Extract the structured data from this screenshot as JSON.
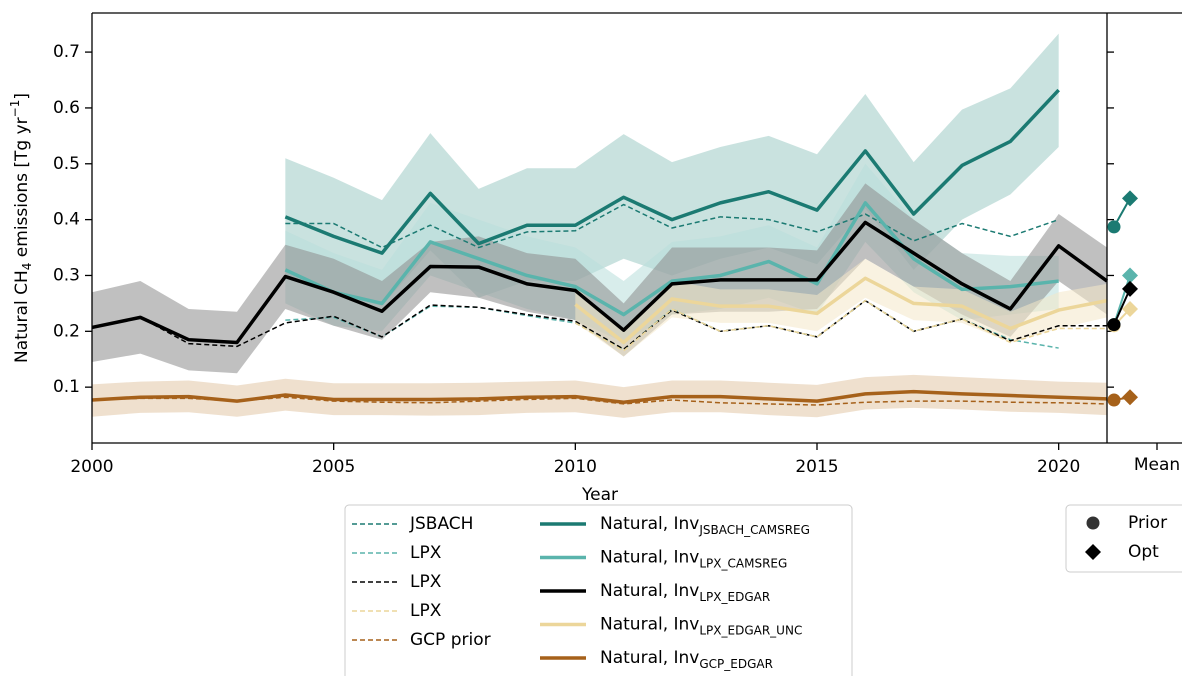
{
  "chart_data": [
    {
      "type": "line",
      "xlabel": "Year",
      "ylabel": [
        "Natural CH",
        "4",
        " emissions [Tg yr",
        "−1",
        "]"
      ],
      "x": [
        2000,
        2001,
        2002,
        2003,
        2004,
        2005,
        2006,
        2007,
        2008,
        2009,
        2010,
        2011,
        2012,
        2013,
        2014,
        2015,
        2016,
        2017,
        2018,
        2019,
        2020,
        2021
      ],
      "xlim": [
        2000,
        2021
      ],
      "xticks": [
        2000,
        2005,
        2010,
        2015,
        2020
      ],
      "ylim": [
        0.0,
        0.77
      ],
      "yticks": [
        0.1,
        0.2,
        0.3,
        0.4,
        0.5,
        0.6,
        0.7
      ],
      "series": [
        {
          "name": "JSBACH",
          "style": "dashed",
          "color": "#1b7a72",
          "values": [
            null,
            null,
            null,
            null,
            0.393,
            0.393,
            0.35,
            0.39,
            0.35,
            0.378,
            0.38,
            0.427,
            0.385,
            0.405,
            0.4,
            0.378,
            0.41,
            0.362,
            0.393,
            0.37,
            0.4,
            null
          ]
        },
        {
          "name": "LPX",
          "style": "dashed",
          "color": "#5ab4ac",
          "values": [
            null,
            null,
            null,
            null,
            0.22,
            0.225,
            0.19,
            0.245,
            0.243,
            0.228,
            0.215,
            0.167,
            0.24,
            0.2,
            0.21,
            0.19,
            0.255,
            0.2,
            0.222,
            0.185,
            0.17,
            null
          ]
        },
        {
          "name": "LPX",
          "style": "dashed",
          "color": "#000000",
          "values": [
            0.207,
            0.225,
            0.178,
            0.173,
            0.215,
            0.227,
            0.19,
            0.247,
            0.243,
            0.23,
            0.218,
            0.168,
            0.238,
            0.2,
            0.21,
            0.19,
            0.255,
            0.2,
            0.222,
            0.183,
            0.21,
            0.21
          ]
        },
        {
          "name": "LPX",
          "style": "dashed",
          "color": "#ecd69a",
          "values": [
            null,
            null,
            null,
            null,
            null,
            null,
            null,
            null,
            null,
            null,
            0.215,
            0.165,
            0.24,
            0.2,
            0.21,
            0.19,
            0.255,
            0.2,
            0.222,
            0.18,
            0.205,
            0.205
          ]
        },
        {
          "name": "GCP prior",
          "style": "dashed",
          "color": "#a6611a",
          "values": [
            0.077,
            0.08,
            0.08,
            0.075,
            0.082,
            0.075,
            0.073,
            0.072,
            0.075,
            0.078,
            0.08,
            0.07,
            0.077,
            0.072,
            0.07,
            0.068,
            0.073,
            0.075,
            0.075,
            0.073,
            0.072,
            0.07
          ]
        },
        {
          "name": "Natural, Inv",
          "name_sub": "JSBACH_CAMSREG",
          "style": "solid",
          "color": "#1b7a72",
          "band_color": "#9ccac5",
          "values": [
            null,
            null,
            null,
            null,
            0.405,
            0.37,
            0.34,
            0.447,
            0.357,
            0.39,
            0.39,
            0.44,
            0.4,
            0.43,
            0.45,
            0.417,
            0.523,
            0.41,
            0.497,
            0.54,
            0.632,
            null
          ],
          "upper": [
            null,
            null,
            null,
            null,
            0.51,
            0.475,
            0.435,
            0.555,
            0.455,
            0.492,
            0.492,
            0.553,
            0.503,
            0.53,
            0.55,
            0.517,
            0.625,
            0.503,
            0.597,
            0.635,
            0.733,
            null
          ],
          "lower": [
            null,
            null,
            null,
            null,
            0.3,
            0.27,
            0.245,
            0.345,
            0.26,
            0.29,
            0.29,
            0.33,
            0.3,
            0.33,
            0.35,
            0.32,
            0.42,
            0.31,
            0.4,
            0.445,
            0.53,
            null
          ]
        },
        {
          "name": "Natural, Inv",
          "name_sub": "LPX_CAMSREG",
          "style": "solid",
          "color": "#5ab4ac",
          "band_color": "#b8dfdb",
          "values": [
            null,
            null,
            null,
            null,
            0.31,
            0.27,
            0.25,
            0.36,
            0.33,
            0.3,
            0.28,
            0.23,
            0.29,
            0.3,
            0.325,
            0.285,
            0.43,
            0.33,
            0.275,
            0.28,
            0.29,
            null
          ],
          "upper": [
            null,
            null,
            null,
            null,
            0.38,
            0.34,
            0.31,
            0.43,
            0.4,
            0.37,
            0.35,
            0.29,
            0.36,
            0.37,
            0.39,
            0.35,
            0.5,
            0.4,
            0.34,
            0.335,
            0.335,
            null
          ],
          "lower": [
            null,
            null,
            null,
            null,
            0.25,
            0.21,
            0.2,
            0.3,
            0.27,
            0.24,
            0.22,
            0.18,
            0.23,
            0.24,
            0.26,
            0.23,
            0.36,
            0.27,
            0.22,
            0.23,
            0.24,
            null
          ]
        },
        {
          "name": "Natural, Inv",
          "name_sub": "LPX_EDGAR",
          "style": "solid",
          "color": "#000000",
          "band_color": "#8c8c8c",
          "values": [
            0.207,
            0.225,
            0.185,
            0.18,
            0.298,
            0.27,
            0.236,
            0.316,
            0.315,
            0.285,
            0.273,
            0.202,
            0.285,
            0.292,
            0.292,
            0.292,
            0.395,
            0.34,
            0.285,
            0.24,
            0.353,
            0.29
          ],
          "upper": [
            0.27,
            0.29,
            0.24,
            0.235,
            0.355,
            0.33,
            0.29,
            0.36,
            0.37,
            0.34,
            0.33,
            0.25,
            0.35,
            0.35,
            0.35,
            0.345,
            0.465,
            0.4,
            0.34,
            0.29,
            0.41,
            0.35
          ],
          "lower": [
            0.145,
            0.16,
            0.13,
            0.125,
            0.24,
            0.21,
            0.185,
            0.27,
            0.26,
            0.235,
            0.22,
            0.155,
            0.23,
            0.235,
            0.235,
            0.24,
            0.33,
            0.28,
            0.23,
            0.19,
            0.29,
            0.23
          ]
        },
        {
          "name": "Natural, Inv",
          "name_sub": "LPX_EDGAR_UNC",
          "style": "solid",
          "color": "#ecd69a",
          "band_color": "#f4e8c8",
          "values": [
            null,
            null,
            null,
            null,
            null,
            null,
            null,
            null,
            null,
            null,
            0.248,
            0.18,
            0.258,
            0.245,
            0.245,
            0.232,
            0.295,
            0.25,
            0.245,
            0.205,
            0.238,
            0.255
          ],
          "upper": [
            null,
            null,
            null,
            null,
            null,
            null,
            null,
            null,
            null,
            null,
            0.28,
            0.2,
            0.29,
            0.275,
            0.275,
            0.265,
            0.33,
            0.28,
            0.275,
            0.235,
            0.27,
            0.285
          ],
          "lower": [
            null,
            null,
            null,
            null,
            null,
            null,
            null,
            null,
            null,
            null,
            0.215,
            0.155,
            0.225,
            0.215,
            0.215,
            0.2,
            0.26,
            0.22,
            0.215,
            0.18,
            0.205,
            0.225
          ]
        },
        {
          "name": "Natural, Inv",
          "name_sub": "GCP_EDGAR",
          "style": "solid",
          "color": "#a6611a",
          "band_color": "#e2c7a6",
          "values": [
            0.077,
            0.082,
            0.083,
            0.075,
            0.086,
            0.078,
            0.078,
            0.078,
            0.079,
            0.082,
            0.083,
            0.073,
            0.083,
            0.083,
            0.079,
            0.075,
            0.088,
            0.092,
            0.088,
            0.085,
            0.082,
            0.079
          ],
          "upper": [
            0.105,
            0.11,
            0.112,
            0.103,
            0.115,
            0.107,
            0.107,
            0.107,
            0.108,
            0.11,
            0.112,
            0.1,
            0.112,
            0.112,
            0.108,
            0.104,
            0.118,
            0.122,
            0.118,
            0.114,
            0.11,
            0.108
          ],
          "lower": [
            0.047,
            0.054,
            0.055,
            0.047,
            0.058,
            0.05,
            0.05,
            0.049,
            0.05,
            0.054,
            0.055,
            0.045,
            0.055,
            0.055,
            0.05,
            0.046,
            0.06,
            0.063,
            0.06,
            0.056,
            0.054,
            0.05
          ]
        }
      ]
    },
    {
      "type": "scatter",
      "xlabel": "Mean",
      "categories": [
        "Prior",
        "Opt"
      ],
      "ylim": [
        0.0,
        0.77
      ],
      "yticks": [
        0.1,
        0.2,
        0.3,
        0.4,
        0.5,
        0.6,
        0.7
      ],
      "series": [
        {
          "color": "#1b7a72",
          "values": [
            0.387,
            0.438
          ]
        },
        {
          "color": "#5ab4ac",
          "values": [
            0.212,
            0.3
          ]
        },
        {
          "color": "#ecd69a",
          "values": [
            0.21,
            0.24
          ]
        },
        {
          "color": "#000000",
          "values": [
            0.212,
            0.276
          ]
        },
        {
          "color": "#a6611a",
          "values": [
            0.077,
            0.082
          ]
        }
      ]
    }
  ]
}
